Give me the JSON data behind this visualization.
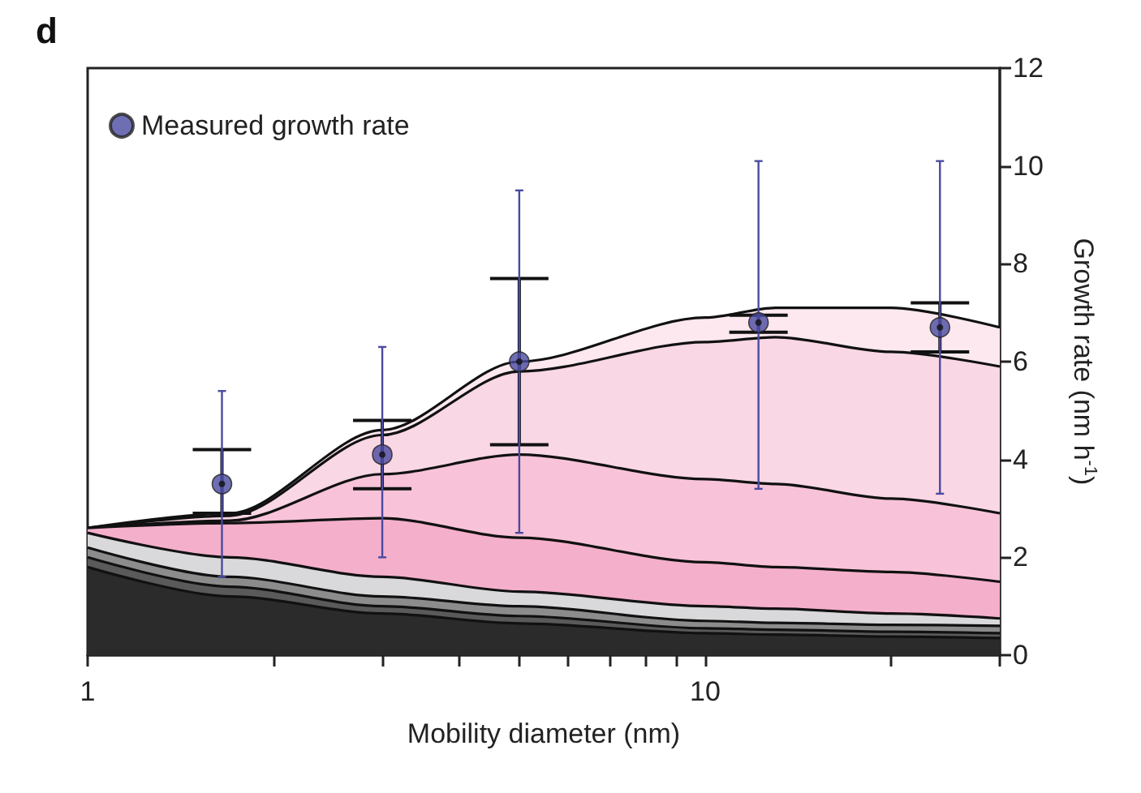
{
  "chart_data": {
    "type": "area",
    "annotations": [
      "d"
    ],
    "xlabel": "Mobility diameter (nm)",
    "ylabel": "Growth rate (nm h$^{-1}$)",
    "x": [
      1,
      1.7,
      3,
      5,
      10,
      13,
      20,
      30
    ],
    "stacked": true,
    "log": "x",
    "legend": "top left",
    "grid": false,
    "xlim": [
      1,
      30
    ],
    "xticks": [
      1,
      {
        "value": 2,
        "label": null
      },
      {
        "value": 3,
        "label": null
      },
      {
        "value": 4,
        "label": null
      },
      {
        "value": 5,
        "label": null
      },
      {
        "value": 6,
        "label": null
      },
      {
        "value": 7,
        "label": null
      },
      {
        "value": 8,
        "label": null
      },
      {
        "value": 9,
        "label": null
      },
      10,
      {
        "value": 20,
        "label": null
      },
      {
        "value": 30,
        "label": null
      }
    ],
    "ylim": [
      0,
      12
    ],
    "yticks": [
      0,
      2,
      4,
      6,
      8,
      10,
      12
    ],
    "series": [
      {
        "color": "#2b2b2b",
        "values": [
          1.8,
          1.2,
          0.85,
          0.65,
          0.45,
          0.42,
          0.38,
          0.35
        ]
      },
      {
        "color": "#5a5a5a",
        "values": [
          0.2,
          0.2,
          0.15,
          0.15,
          0.1,
          0.1,
          0.1,
          0.1
        ]
      },
      {
        "color": "#8c8c8c",
        "values": [
          0.2,
          0.2,
          0.2,
          0.2,
          0.15,
          0.14,
          0.14,
          0.15
        ]
      },
      {
        "color": "#d9d9db",
        "values": [
          0.3,
          0.4,
          0.4,
          0.3,
          0.3,
          0.29,
          0.23,
          0.15
        ]
      },
      {
        "color": "#f4afcb",
        "values": [
          0.1,
          0.7,
          1.2,
          1.1,
          0.9,
          0.85,
          0.85,
          0.75
        ]
      },
      {
        "color": "#f8c3d9",
        "values": [
          0,
          0.05,
          0.9,
          1.7,
          1.7,
          1.7,
          1.5,
          1.4
        ]
      },
      {
        "color": "#f9d7e5",
        "values": [
          0,
          0.1,
          0.8,
          1.7,
          2.8,
          3.0,
          3.0,
          3.0
        ]
      },
      {
        "color": "#fde8ef",
        "values": [
          0,
          0.05,
          0.1,
          0.2,
          0.5,
          0.6,
          0.9,
          0.8
        ]
      },
      {
        "type": "scatter",
        "marker": "circle",
        "color": "#111111",
        "x": [
          1.65,
          3,
          5,
          12.2,
          24
        ],
        "values": [
          3.5,
          4.1,
          6.0,
          6.8,
          6.7
        ],
        "errors": [
          [
            2.9,
            4.2
          ],
          [
            3.4,
            4.8
          ],
          [
            4.3,
            7.7
          ],
          [
            6.6,
            6.95
          ],
          [
            6.2,
            7.2
          ]
        ]
      },
      {
        "type": "scatter",
        "name": "Measured growth rate",
        "marker": "circle",
        "color": "#4a4aa0",
        "x": [
          1.65,
          3,
          5,
          12.2,
          24
        ],
        "values": [
          3.5,
          4.1,
          6.0,
          6.8,
          6.7
        ],
        "errors": [
          [
            1.6,
            5.4
          ],
          [
            2.0,
            6.3
          ],
          [
            2.5,
            9.5
          ],
          [
            3.4,
            10.1
          ],
          [
            3.3,
            10.1
          ]
        ]
      }
    ]
  }
}
